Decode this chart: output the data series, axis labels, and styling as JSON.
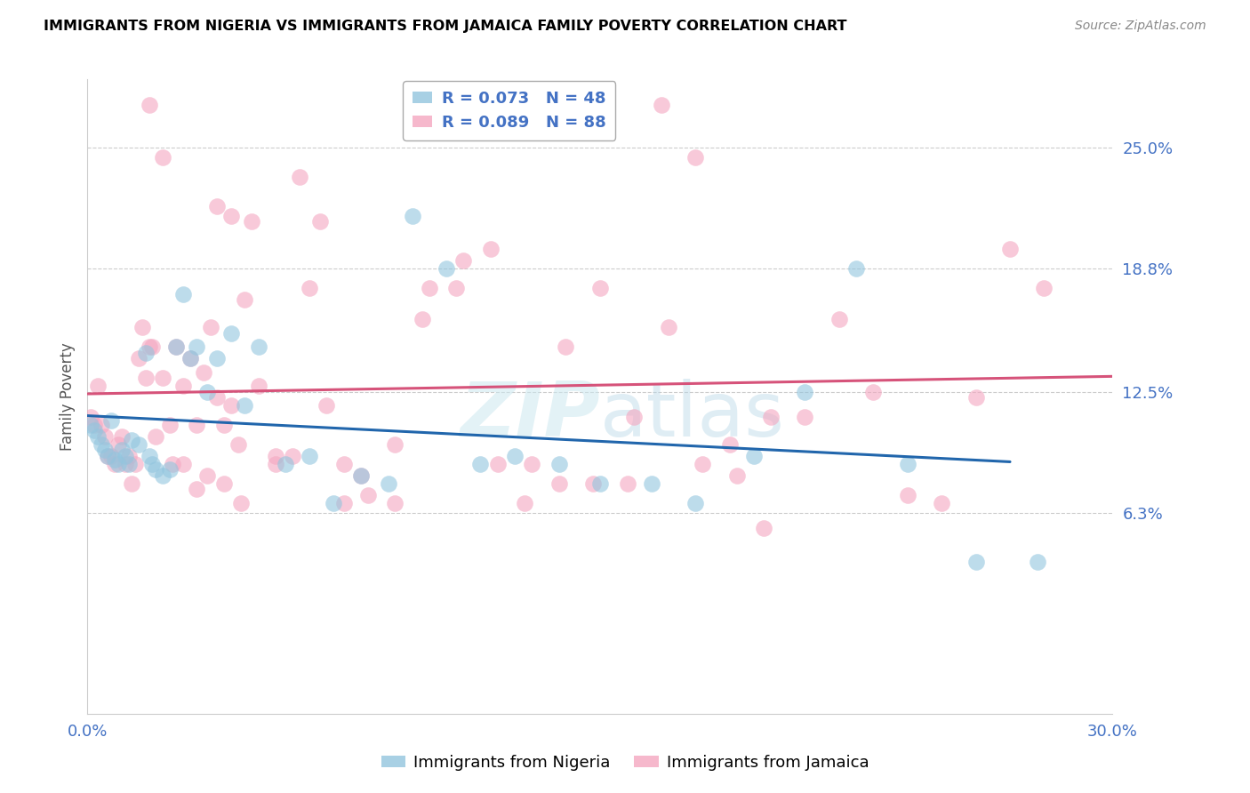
{
  "title": "IMMIGRANTS FROM NIGERIA VS IMMIGRANTS FROM JAMAICA FAMILY POVERTY CORRELATION CHART",
  "source": "Source: ZipAtlas.com",
  "ylabel": "Family Poverty",
  "xlim": [
    0.0,
    0.3
  ],
  "ylim": [
    -0.04,
    0.285
  ],
  "yticks": [
    0.063,
    0.125,
    0.188,
    0.25
  ],
  "ytick_labels": [
    "6.3%",
    "12.5%",
    "18.8%",
    "25.0%"
  ],
  "xticks": [
    0.0,
    0.05,
    0.1,
    0.15,
    0.2,
    0.25,
    0.3
  ],
  "xtick_labels": [
    "0.0%",
    "",
    "",
    "",
    "",
    "",
    "30.0%"
  ],
  "color_nigeria": "#92c5de",
  "color_jamaica": "#f4a6c0",
  "line_color_nigeria": "#2166ac",
  "line_color_jamaica": "#d6537a",
  "nigeria_R": "0.073",
  "nigeria_N": "48",
  "jamaica_R": "0.089",
  "jamaica_N": "88",
  "nigeria_x": [
    0.001,
    0.002,
    0.003,
    0.004,
    0.005,
    0.006,
    0.007,
    0.008,
    0.009,
    0.01,
    0.011,
    0.012,
    0.013,
    0.015,
    0.017,
    0.018,
    0.019,
    0.02,
    0.022,
    0.024,
    0.026,
    0.028,
    0.03,
    0.032,
    0.035,
    0.038,
    0.042,
    0.046,
    0.05,
    0.058,
    0.065,
    0.072,
    0.08,
    0.088,
    0.095,
    0.105,
    0.115,
    0.125,
    0.138,
    0.15,
    0.165,
    0.178,
    0.195,
    0.21,
    0.225,
    0.24,
    0.26,
    0.278
  ],
  "nigeria_y": [
    0.108,
    0.105,
    0.102,
    0.098,
    0.095,
    0.092,
    0.11,
    0.09,
    0.088,
    0.095,
    0.092,
    0.088,
    0.1,
    0.098,
    0.145,
    0.092,
    0.088,
    0.085,
    0.082,
    0.085,
    0.148,
    0.175,
    0.142,
    0.148,
    0.125,
    0.142,
    0.155,
    0.118,
    0.148,
    0.088,
    0.092,
    0.068,
    0.082,
    0.078,
    0.215,
    0.188,
    0.088,
    0.092,
    0.088,
    0.078,
    0.078,
    0.068,
    0.092,
    0.125,
    0.188,
    0.088,
    0.038,
    0.038
  ],
  "jamaica_x": [
    0.001,
    0.002,
    0.003,
    0.004,
    0.005,
    0.006,
    0.007,
    0.008,
    0.009,
    0.01,
    0.011,
    0.012,
    0.013,
    0.014,
    0.015,
    0.016,
    0.017,
    0.018,
    0.019,
    0.02,
    0.022,
    0.024,
    0.026,
    0.028,
    0.03,
    0.032,
    0.034,
    0.036,
    0.038,
    0.04,
    0.042,
    0.044,
    0.046,
    0.05,
    0.055,
    0.06,
    0.065,
    0.07,
    0.075,
    0.08,
    0.09,
    0.1,
    0.11,
    0.12,
    0.13,
    0.14,
    0.15,
    0.16,
    0.17,
    0.18,
    0.19,
    0.2,
    0.21,
    0.22,
    0.23,
    0.24,
    0.25,
    0.26,
    0.27,
    0.28,
    0.038,
    0.042,
    0.048,
    0.055,
    0.062,
    0.068,
    0.075,
    0.082,
    0.09,
    0.098,
    0.108,
    0.118,
    0.128,
    0.138,
    0.148,
    0.158,
    0.168,
    0.178,
    0.188,
    0.198,
    0.025,
    0.032,
    0.018,
    0.022,
    0.028,
    0.035,
    0.04,
    0.045
  ],
  "jamaica_y": [
    0.112,
    0.108,
    0.128,
    0.108,
    0.102,
    0.092,
    0.092,
    0.088,
    0.098,
    0.102,
    0.088,
    0.092,
    0.078,
    0.088,
    0.142,
    0.158,
    0.132,
    0.148,
    0.148,
    0.102,
    0.132,
    0.108,
    0.148,
    0.128,
    0.142,
    0.108,
    0.135,
    0.158,
    0.122,
    0.108,
    0.118,
    0.098,
    0.172,
    0.128,
    0.092,
    0.092,
    0.178,
    0.118,
    0.088,
    0.082,
    0.098,
    0.178,
    0.192,
    0.088,
    0.088,
    0.148,
    0.178,
    0.112,
    0.158,
    0.088,
    0.082,
    0.112,
    0.112,
    0.162,
    0.125,
    0.072,
    0.068,
    0.122,
    0.198,
    0.178,
    0.22,
    0.215,
    0.212,
    0.088,
    0.235,
    0.212,
    0.068,
    0.072,
    0.068,
    0.162,
    0.178,
    0.198,
    0.068,
    0.078,
    0.078,
    0.078,
    0.272,
    0.245,
    0.098,
    0.055,
    0.088,
    0.075,
    0.272,
    0.245,
    0.088,
    0.082,
    0.078,
    0.068
  ]
}
